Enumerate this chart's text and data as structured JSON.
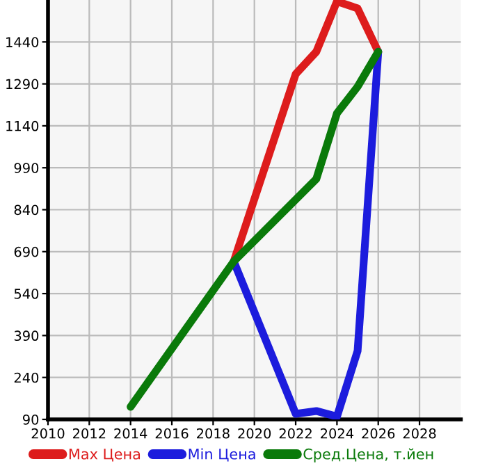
{
  "chart_data": {
    "type": "line",
    "xlim": [
      2010,
      2030
    ],
    "xticks": [
      2010,
      2012,
      2014,
      2016,
      2018,
      2020,
      2022,
      2024,
      2026,
      2028
    ],
    "ylim": [
      90,
      1590
    ],
    "yticks": [
      90,
      240,
      390,
      540,
      690,
      840,
      990,
      1140,
      1290,
      1440
    ],
    "grid": true,
    "legend": "bottom",
    "marker": "none",
    "line_style": "solid",
    "series": [
      {
        "name": "Max Цена",
        "color": "#dd1c1c",
        "x": [
          2019,
          2022,
          2023,
          2024,
          2025,
          2026
        ],
        "values": [
          655,
          1325,
          1405,
          1585,
          1560,
          1405
        ]
      },
      {
        "name": "Min Цена",
        "color": "#1c1cdd",
        "x": [
          2019,
          2022,
          2023,
          2024,
          2025,
          2026
        ],
        "values": [
          655,
          110,
          120,
          100,
          335,
          1405
        ]
      },
      {
        "name": "Сред.Цена, т.йен",
        "color": "#0a7a0a",
        "x": [
          2014,
          2019,
          2023,
          2024,
          2025,
          2026
        ],
        "values": [
          135,
          655,
          950,
          1185,
          1280,
          1405
        ]
      }
    ]
  }
}
